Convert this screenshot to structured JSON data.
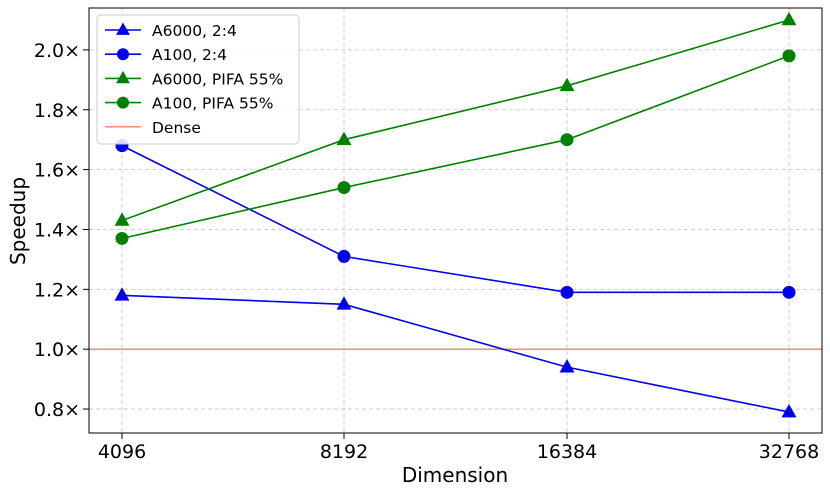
{
  "chart_data": {
    "type": "line",
    "xlabel": "Dimension",
    "ylabel": "Speedup",
    "x_categories": [
      "4096",
      "8192",
      "16384",
      "32768"
    ],
    "y_ticks": [
      0.8,
      1.0,
      1.2,
      1.4,
      1.6,
      1.8,
      2.0
    ],
    "y_tick_labels": [
      "0.8×",
      "1.0×",
      "1.2×",
      "1.4×",
      "1.6×",
      "1.8×",
      "2.0×"
    ],
    "ylim": [
      0.72,
      2.14
    ],
    "grid": true,
    "legend_position": "top-left",
    "series": [
      {
        "name": "A6000, 2:4",
        "color": "#0000ee",
        "marker": "triangle",
        "values": [
          1.18,
          1.15,
          0.94,
          0.79
        ]
      },
      {
        "name": "A100, 2:4",
        "color": "#0000ee",
        "marker": "circle",
        "values": [
          1.68,
          1.31,
          1.19,
          1.19
        ]
      },
      {
        "name": "A6000, PIFA 55%",
        "color": "#008000",
        "marker": "triangle",
        "values": [
          1.43,
          1.7,
          1.88,
          2.1
        ]
      },
      {
        "name": "A100, PIFA 55%",
        "color": "#008000",
        "marker": "circle",
        "values": [
          1.37,
          1.54,
          1.7,
          1.98
        ]
      }
    ],
    "reference_line": {
      "name": "Dense",
      "value": 1.0,
      "color": "#f08070"
    }
  }
}
